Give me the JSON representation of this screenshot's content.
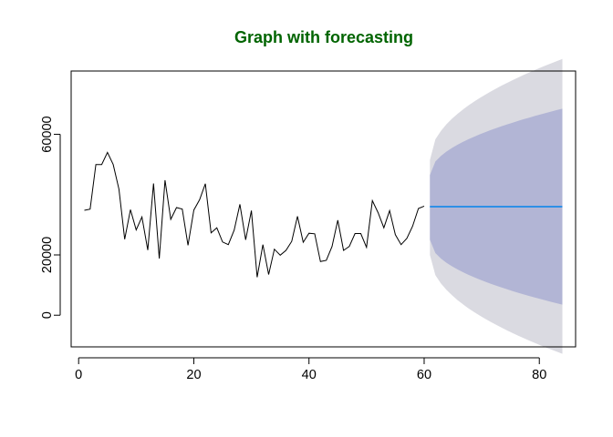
{
  "chart_data": {
    "type": "line",
    "title": "Graph with forecasting",
    "xlabel": "",
    "ylabel": "",
    "xlim": [
      -1.3,
      86.3
    ],
    "ylim": [
      -10500,
      81000
    ],
    "x_ticks": [
      0,
      20,
      40,
      60,
      80
    ],
    "y_ticks": [
      0,
      20000,
      60000
    ],
    "grid": false,
    "colors": {
      "title": "#006400",
      "series": "#000000",
      "forecast": "#2f8fe6",
      "band_95": "#dadae1",
      "band_80": "#b2b5d5"
    },
    "series": [
      {
        "values": [
          {
            "x": 1,
            "y": 34800
          },
          {
            "x": 2,
            "y": 35200
          },
          {
            "x": 3,
            "y": 50000
          },
          {
            "x": 4,
            "y": 50000
          },
          {
            "x": 5,
            "y": 54000
          },
          {
            "x": 6,
            "y": 50000
          },
          {
            "x": 7,
            "y": 41800
          },
          {
            "x": 8,
            "y": 25200
          },
          {
            "x": 9,
            "y": 35000
          },
          {
            "x": 10,
            "y": 28300
          },
          {
            "x": 11,
            "y": 32600
          },
          {
            "x": 12,
            "y": 21600
          },
          {
            "x": 13,
            "y": 43700
          },
          {
            "x": 14,
            "y": 18800
          },
          {
            "x": 15,
            "y": 44800
          },
          {
            "x": 16,
            "y": 31800
          },
          {
            "x": 17,
            "y": 35700
          },
          {
            "x": 18,
            "y": 35200
          },
          {
            "x": 19,
            "y": 23200
          },
          {
            "x": 20,
            "y": 34900
          },
          {
            "x": 21,
            "y": 38300
          },
          {
            "x": 22,
            "y": 43600
          },
          {
            "x": 23,
            "y": 27300
          },
          {
            "x": 24,
            "y": 29000
          },
          {
            "x": 25,
            "y": 24300
          },
          {
            "x": 26,
            "y": 23400
          },
          {
            "x": 27,
            "y": 28200
          },
          {
            "x": 28,
            "y": 36800
          },
          {
            "x": 29,
            "y": 25000
          },
          {
            "x": 30,
            "y": 34700
          },
          {
            "x": 31,
            "y": 12600
          },
          {
            "x": 32,
            "y": 23400
          },
          {
            "x": 33,
            "y": 13500
          },
          {
            "x": 34,
            "y": 21900
          },
          {
            "x": 35,
            "y": 19900
          },
          {
            "x": 36,
            "y": 21500
          },
          {
            "x": 37,
            "y": 24500
          },
          {
            "x": 38,
            "y": 32800
          },
          {
            "x": 39,
            "y": 24200
          },
          {
            "x": 40,
            "y": 27200
          },
          {
            "x": 41,
            "y": 27000
          },
          {
            "x": 42,
            "y": 17800
          },
          {
            "x": 43,
            "y": 18200
          },
          {
            "x": 44,
            "y": 22800
          },
          {
            "x": 45,
            "y": 31500
          },
          {
            "x": 46,
            "y": 21500
          },
          {
            "x": 47,
            "y": 22800
          },
          {
            "x": 48,
            "y": 27100
          },
          {
            "x": 49,
            "y": 27100
          },
          {
            "x": 50,
            "y": 22500
          },
          {
            "x": 51,
            "y": 38000
          },
          {
            "x": 52,
            "y": 34000
          },
          {
            "x": 53,
            "y": 29000
          },
          {
            "x": 54,
            "y": 34700
          },
          {
            "x": 55,
            "y": 26700
          },
          {
            "x": 56,
            "y": 23400
          },
          {
            "x": 57,
            "y": 25500
          },
          {
            "x": 58,
            "y": 29500
          },
          {
            "x": 59,
            "y": 35400
          },
          {
            "x": 60,
            "y": 36200
          }
        ]
      }
    ],
    "forecast": {
      "x_start": 61,
      "x_end": 84,
      "mean": 36000,
      "lower_80_start": 25000,
      "upper_80_start": 46500,
      "lower_80_end": 3500,
      "upper_80_end": 68500,
      "lower_95_start": 20000,
      "upper_95_start": 51500,
      "lower_95_end": -12800,
      "upper_95_end": 85000
    }
  }
}
